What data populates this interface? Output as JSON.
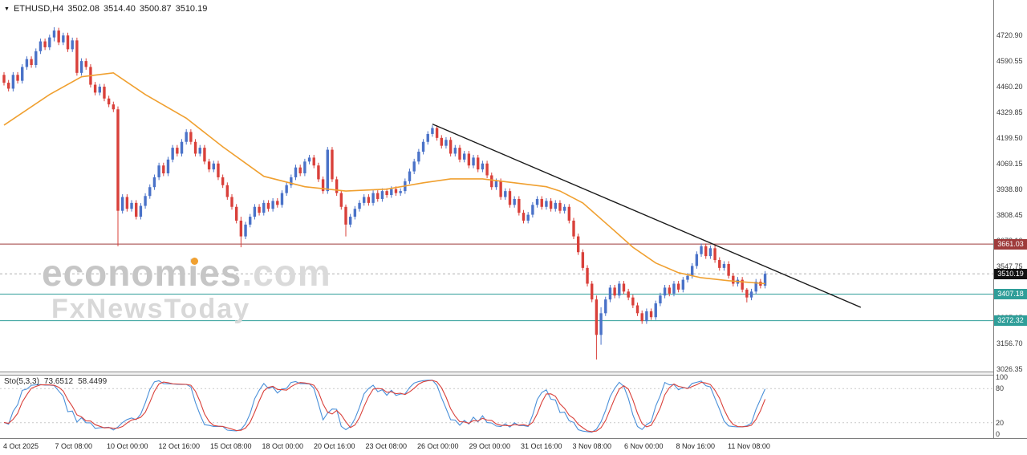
{
  "header": {
    "symbol": "ETHUSD,H4",
    "open": "3502.08",
    "high": "3514.40",
    "low": "3500.87",
    "close": "3510.19"
  },
  "watermark": {
    "brand": "economies",
    "tld": ".com",
    "line2": "FxNewsToday"
  },
  "indicator": {
    "name": "Sto(5,3,3)",
    "k_value": "73.6512",
    "d_value": "58.4499"
  },
  "colors": {
    "bull": "#4a72c8",
    "bear": "#d9403a",
    "ma": "#f0a030",
    "trendline": "#1a1a1a",
    "resistance": "#9e3a3a",
    "support": "#2f9e99",
    "current_badge": "#111111",
    "current_line": "#b0b0b0",
    "stoch_k": "#4a90d9",
    "stoch_d": "#d9403a",
    "stoch_level": "#c9c9c9",
    "axis_text": "#3a3a3a"
  },
  "chart_data": {
    "type": "candlestick",
    "symbol": "ETHUSD",
    "timeframe": "H4",
    "ylim": [
      3014,
      4900
    ],
    "y_ticks": [
      4720.9,
      4590.55,
      4460.2,
      4329.85,
      4199.5,
      4069.15,
      3938.8,
      3808.45,
      3678.1,
      3547.75,
      3417.4,
      3287.05,
      3156.7,
      3026.35
    ],
    "x_labels": [
      "4 Oct 2025",
      "7 Oct 08:00",
      "10 Oct 00:00",
      "12 Oct 16:00",
      "15 Oct 08:00",
      "18 Oct 00:00",
      "20 Oct 16:00",
      "23 Oct 08:00",
      "26 Oct 00:00",
      "29 Oct 00:00",
      "31 Oct 16:00",
      "3 Nov 08:00",
      "6 Nov 00:00",
      "8 Nov 16:00",
      "11 Nov 08:00"
    ],
    "first_open": 4520,
    "default_wick": 14,
    "closes": [
      4480,
      4450,
      4520,
      4490,
      4560,
      4600,
      4570,
      4640,
      4690,
      4660,
      4710,
      4745,
      4685,
      4720,
      4650,
      4695,
      4530,
      4590,
      4560,
      4470,
      4430,
      4460,
      4400,
      4370,
      4345,
      3830,
      3900,
      3840,
      3870,
      3800,
      3855,
      3905,
      3950,
      4000,
      4060,
      4020,
      4090,
      4150,
      4120,
      4180,
      4230,
      4180,
      4120,
      4150,
      4080,
      4040,
      4070,
      4000,
      3960,
      3900,
      3850,
      3780,
      3700,
      3760,
      3800,
      3850,
      3820,
      3870,
      3840,
      3880,
      3860,
      3920,
      3960,
      4000,
      4050,
      4020,
      4080,
      4100,
      4060,
      3990,
      3930,
      4140,
      3990,
      3920,
      3850,
      3760,
      3800,
      3840,
      3870,
      3900,
      3870,
      3920,
      3890,
      3930,
      3910,
      3940,
      3920,
      3930,
      3980,
      4030,
      4080,
      4130,
      4180,
      4220,
      4250,
      4200,
      4160,
      4190,
      4120,
      4150,
      4090,
      4120,
      4060,
      4100,
      4040,
      4070,
      4010,
      3950,
      3980,
      3900,
      3930,
      3860,
      3890,
      3820,
      3780,
      3810,
      3860,
      3890,
      3850,
      3880,
      3840,
      3870,
      3830,
      3850,
      3780,
      3700,
      3620,
      3540,
      3460,
      3380,
      3200,
      3310,
      3380,
      3440,
      3400,
      3460,
      3420,
      3390,
      3350,
      3310,
      3270,
      3320,
      3290,
      3360,
      3400,
      3440,
      3410,
      3460,
      3430,
      3480,
      3500,
      3550,
      3610,
      3650,
      3600,
      3640,
      3580,
      3540,
      3560,
      3500,
      3460,
      3480,
      3430,
      3390,
      3420,
      3470,
      3450,
      3510.19
    ],
    "special_candles": {
      "11": [
        4710,
        4762,
        4690,
        4745
      ],
      "25": [
        4345,
        4360,
        3650,
        3830
      ],
      "52": [
        3780,
        3800,
        3645,
        3700
      ],
      "75": [
        3850,
        3862,
        3700,
        3760
      ],
      "130": [
        3380,
        3400,
        3075,
        3200
      ],
      "131": [
        3200,
        3340,
        3150,
        3310
      ],
      "163": [
        3430,
        3438,
        3365,
        3390
      ]
    },
    "ma_points": [
      [
        0,
        4265
      ],
      [
        10,
        4420
      ],
      [
        17,
        4510
      ],
      [
        24,
        4530
      ],
      [
        31,
        4420
      ],
      [
        40,
        4300
      ],
      [
        48,
        4155
      ],
      [
        57,
        4005
      ],
      [
        66,
        3952
      ],
      [
        75,
        3930
      ],
      [
        84,
        3940
      ],
      [
        92,
        3972
      ],
      [
        98,
        3992
      ],
      [
        105,
        3992
      ],
      [
        112,
        3972
      ],
      [
        119,
        3952
      ],
      [
        122,
        3930
      ],
      [
        127,
        3870
      ],
      [
        133,
        3748
      ],
      [
        138,
        3645
      ],
      [
        143,
        3565
      ],
      [
        148,
        3516
      ],
      [
        153,
        3490
      ],
      [
        159,
        3475
      ],
      [
        167,
        3460
      ]
    ],
    "trendline": {
      "from": [
        94,
        4270
      ],
      "to": [
        188,
        3340
      ]
    },
    "hlines": [
      {
        "price": 3661.03,
        "role": "resistance"
      },
      {
        "price": 3407.18,
        "role": "support"
      },
      {
        "price": 3272.32,
        "role": "support"
      }
    ],
    "current_price": 3510.19,
    "stoch": {
      "period": 5,
      "slowing": 3,
      "signal": 3,
      "levels": [
        100,
        80,
        20,
        0
      ],
      "overbought": 80,
      "oversold": 20
    }
  }
}
